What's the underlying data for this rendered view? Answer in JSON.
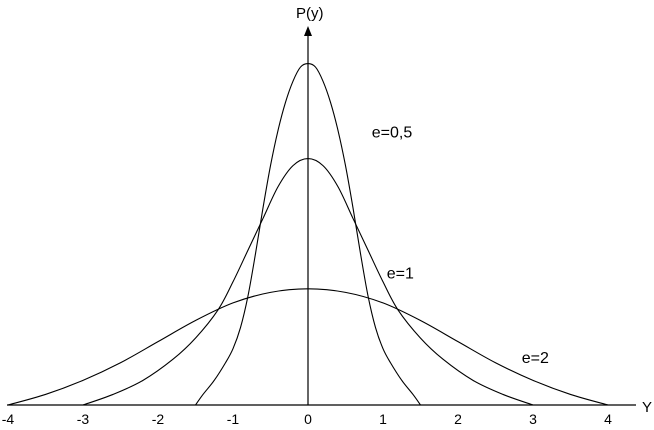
{
  "chart_data": {
    "type": "line",
    "title": "",
    "xlabel": "Y",
    "ylabel": "P(y)",
    "xlim": [
      -4,
      4
    ],
    "ylim": [
      0,
      1.0
    ],
    "xticks": [
      "-4",
      "-3",
      "-2",
      "-1",
      "0",
      "1",
      "2",
      "3",
      "4"
    ],
    "grid": false,
    "series": [
      {
        "name": "e=0,5",
        "x": [
          -1.5,
          -1.4,
          -1.25,
          -1.1,
          -1.0,
          -0.9,
          -0.8,
          -0.7,
          -0.6,
          -0.5,
          -0.4,
          -0.3,
          -0.2,
          -0.1,
          0,
          0.1,
          0.2,
          0.3,
          0.4,
          0.5,
          0.6,
          0.7,
          0.8,
          0.9,
          1.0,
          1.1,
          1.25,
          1.4,
          1.5
        ],
        "y": [
          0.0,
          0.03,
          0.07,
          0.12,
          0.16,
          0.22,
          0.31,
          0.43,
          0.56,
          0.68,
          0.78,
          0.86,
          0.92,
          0.96,
          0.97,
          0.96,
          0.92,
          0.86,
          0.78,
          0.68,
          0.56,
          0.43,
          0.31,
          0.22,
          0.16,
          0.12,
          0.07,
          0.03,
          0.0
        ]
      },
      {
        "name": "e=1",
        "x": [
          -3.0,
          -2.6,
          -2.2,
          -1.8,
          -1.5,
          -1.2,
          -1.0,
          -0.8,
          -0.6,
          -0.4,
          -0.2,
          0,
          0.2,
          0.4,
          0.6,
          0.8,
          1.0,
          1.2,
          1.5,
          1.8,
          2.2,
          2.6,
          3.0
        ],
        "y": [
          0.0,
          0.03,
          0.07,
          0.13,
          0.19,
          0.27,
          0.35,
          0.44,
          0.53,
          0.62,
          0.68,
          0.7,
          0.68,
          0.62,
          0.53,
          0.44,
          0.35,
          0.27,
          0.19,
          0.13,
          0.07,
          0.03,
          0.0
        ]
      },
      {
        "name": "e=2",
        "x": [
          -4.0,
          -3.5,
          -3.0,
          -2.5,
          -2.0,
          -1.5,
          -1.0,
          -0.5,
          0,
          0.5,
          1.0,
          1.5,
          2.0,
          2.5,
          3.0,
          3.5,
          4.0
        ],
        "y": [
          0.0,
          0.03,
          0.07,
          0.12,
          0.18,
          0.24,
          0.29,
          0.32,
          0.33,
          0.32,
          0.29,
          0.24,
          0.18,
          0.12,
          0.07,
          0.03,
          0.0
        ]
      }
    ],
    "annotations": [
      {
        "text": "e=0,5",
        "x": 0.85,
        "y": 0.76
      },
      {
        "text": "e=1",
        "x": 1.05,
        "y": 0.36
      },
      {
        "text": "e=2",
        "x": 2.85,
        "y": 0.12
      }
    ]
  }
}
